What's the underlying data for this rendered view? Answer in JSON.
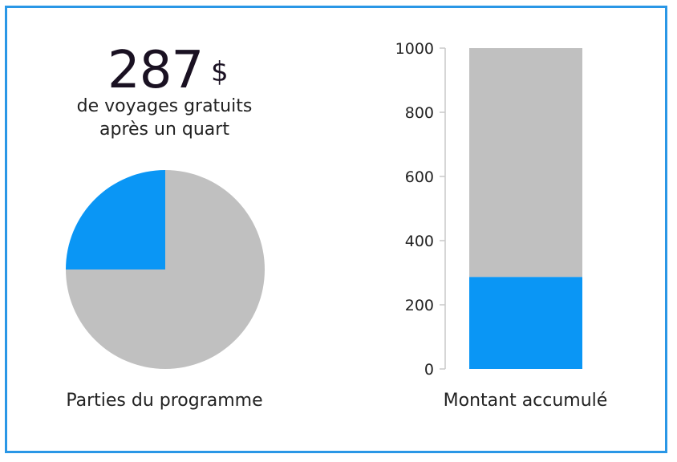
{
  "headline": {
    "amount": "287",
    "currency": "$",
    "line1": "de voyages gratuits",
    "line2": "après un quart"
  },
  "captions": {
    "pie": "Parties du programme",
    "bar": "Montant accumulé"
  },
  "chart_data": [
    {
      "type": "pie",
      "values": [
        25,
        75
      ],
      "colors": [
        "#0a96f5",
        "#c0c0c0"
      ],
      "start_angle_deg": 270,
      "direction": "clockwise"
    },
    {
      "type": "bar",
      "stacked": true,
      "categories": [
        ""
      ],
      "series": [
        {
          "values": [
            287
          ],
          "color": "#0a96f5"
        },
        {
          "values": [
            713
          ],
          "color": "#c0c0c0"
        }
      ],
      "ylim": [
        0,
        1000
      ],
      "yticks": [
        0,
        200,
        400,
        600,
        800,
        1000
      ],
      "grid": false
    }
  ]
}
